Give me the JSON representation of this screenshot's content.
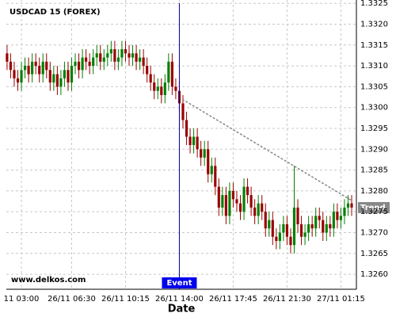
{
  "chart_data": {
    "type": "candlestick",
    "title": "USDCAD 15 (FOREX)",
    "watermark": "www.delkos.com",
    "x_label": "Date",
    "xlim": [
      1.95,
      26.33
    ],
    "ylim": [
      1.32564,
      1.33258
    ],
    "xticks": [
      {
        "value": 3,
        "label": "11 03:00"
      },
      {
        "value": 6.5,
        "label": "26/11 06:30"
      },
      {
        "value": 10.25,
        "label": "26/11 10:15"
      },
      {
        "value": 14,
        "label": "26/11 14:00"
      },
      {
        "value": 17.75,
        "label": "26/11 17:45"
      },
      {
        "value": 21.5,
        "label": "26/11 21:30"
      },
      {
        "value": 25.25,
        "label": "27/11 01:15"
      }
    ],
    "yticks": [
      {
        "value": 1.326,
        "label": "1.3260"
      },
      1.3265,
      {
        "value": 1.327,
        "label": "1.3270"
      },
      1.3275,
      {
        "value": 1.328,
        "label": "1.3280"
      },
      1.3285,
      {
        "value": 1.329,
        "label": "1.3290"
      },
      1.3295,
      {
        "value": 1.33,
        "label": "1.3300"
      },
      1.3305,
      {
        "value": 1.331,
        "label": "1.3310"
      },
      1.3315,
      {
        "value": 1.332,
        "label": "1.3320"
      },
      1.3325
    ],
    "grid": true,
    "up_color": "#008000",
    "down_color": "#990000",
    "x": [
      2,
      2.25,
      2.5,
      2.75,
      3,
      3.25,
      3.5,
      3.75,
      4,
      4.25,
      4.5,
      4.75,
      5,
      5.25,
      5.5,
      5.75,
      6,
      6.25,
      6.5,
      6.75,
      7,
      7.25,
      7.5,
      7.75,
      8,
      8.25,
      8.5,
      8.75,
      9,
      9.25,
      9.5,
      9.75,
      10,
      10.25,
      10.5,
      10.75,
      11,
      11.25,
      11.5,
      11.75,
      12,
      12.25,
      12.5,
      12.75,
      13,
      13.25,
      13.5,
      13.75,
      14,
      14.25,
      14.5,
      14.75,
      15,
      15.25,
      15.5,
      15.75,
      16,
      16.25,
      16.5,
      16.75,
      17,
      17.25,
      17.5,
      17.75,
      18,
      18.25,
      18.5,
      18.75,
      19,
      19.25,
      19.5,
      19.75,
      20,
      20.25,
      20.5,
      20.75,
      21,
      21.25,
      21.5,
      21.75,
      22,
      22.25,
      22.5,
      22.75,
      23,
      23.25,
      23.5,
      23.75,
      24,
      24.25,
      24.5,
      24.75,
      25,
      25.25,
      25.5,
      25.75,
      26
    ],
    "open": [
      1.3313,
      1.3311,
      1.3309,
      1.3307,
      1.3306,
      1.3309,
      1.331,
      1.3308,
      1.3311,
      1.331,
      1.3308,
      1.3311,
      1.3309,
      1.3306,
      1.3308,
      1.3305,
      1.3307,
      1.3309,
      1.3306,
      1.331,
      1.3311,
      1.3309,
      1.3312,
      1.3311,
      1.331,
      1.3312,
      1.3313,
      1.3311,
      1.3312,
      1.3313,
      1.3314,
      1.3311,
      1.3312,
      1.3314,
      1.3313,
      1.3312,
      1.3313,
      1.3311,
      1.3312,
      1.331,
      1.3308,
      1.3306,
      1.3304,
      1.3305,
      1.3303,
      1.3306,
      1.3311,
      1.3305,
      1.3304,
      1.3301,
      1.3297,
      1.3293,
      1.3291,
      1.3293,
      1.329,
      1.3288,
      1.329,
      1.3284,
      1.3286,
      1.3281,
      1.3276,
      1.3279,
      1.3274,
      1.328,
      1.3278,
      1.3277,
      1.3275,
      1.3281,
      1.3279,
      1.3276,
      1.3274,
      1.3277,
      1.3275,
      1.3271,
      1.3273,
      1.3269,
      1.3268,
      1.327,
      1.3272,
      1.3269,
      1.3267,
      1.3276,
      1.3272,
      1.3269,
      1.327,
      1.3272,
      1.3271,
      1.3274,
      1.3273,
      1.327,
      1.3272,
      1.3271,
      1.3275,
      1.3273,
      1.3274,
      1.3276,
      1.3277
    ],
    "high": [
      1.3315,
      1.3313,
      1.3311,
      1.3309,
      1.3311,
      1.3312,
      1.3312,
      1.3313,
      1.3313,
      1.3312,
      1.3313,
      1.3313,
      1.3311,
      1.331,
      1.331,
      1.3309,
      1.3311,
      1.3311,
      1.3312,
      1.3313,
      1.3313,
      1.3314,
      1.3314,
      1.3313,
      1.3314,
      1.3315,
      1.3315,
      1.3314,
      1.3315,
      1.3316,
      1.3316,
      1.3314,
      1.3316,
      1.3316,
      1.3315,
      1.3315,
      1.3315,
      1.3314,
      1.3314,
      1.3312,
      1.331,
      1.3308,
      1.3307,
      1.3307,
      1.3308,
      1.3313,
      1.3313,
      1.3307,
      1.3306,
      1.3303,
      1.3299,
      1.3295,
      1.3295,
      1.3295,
      1.3292,
      1.3292,
      1.3292,
      1.3288,
      1.3288,
      1.3283,
      1.3281,
      1.3281,
      1.3282,
      1.3282,
      1.328,
      1.3279,
      1.3283,
      1.3283,
      1.3281,
      1.3278,
      1.3279,
      1.3279,
      1.3277,
      1.3275,
      1.3275,
      1.3271,
      1.3272,
      1.3274,
      1.3274,
      1.3271,
      1.3286,
      1.3278,
      1.3274,
      1.3272,
      1.3274,
      1.3274,
      1.3276,
      1.3276,
      1.3275,
      1.3274,
      1.3274,
      1.3277,
      1.3277,
      1.3276,
      1.3278,
      1.3279,
      1.3279
    ],
    "low": [
      1.3309,
      1.3307,
      1.3305,
      1.3304,
      1.3304,
      1.3307,
      1.3306,
      1.3306,
      1.3308,
      1.3306,
      1.3306,
      1.3307,
      1.3304,
      1.3304,
      1.3303,
      1.3303,
      1.3305,
      1.3304,
      1.3304,
      1.3308,
      1.3307,
      1.3307,
      1.3309,
      1.3308,
      1.3308,
      1.331,
      1.3309,
      1.3309,
      1.331,
      1.3311,
      1.3309,
      1.3309,
      1.331,
      1.3311,
      1.331,
      1.331,
      1.3309,
      1.3309,
      1.3308,
      1.3306,
      1.3304,
      1.3302,
      1.3302,
      1.3301,
      1.3301,
      1.3304,
      1.3303,
      1.3302,
      1.3299,
      1.3295,
      1.3291,
      1.3289,
      1.3289,
      1.3288,
      1.3286,
      1.3286,
      1.3282,
      1.3282,
      1.3279,
      1.3274,
      1.3274,
      1.3272,
      1.3272,
      1.3276,
      1.3275,
      1.3273,
      1.3273,
      1.3277,
      1.3274,
      1.3272,
      1.3272,
      1.3273,
      1.3269,
      1.3269,
      1.3267,
      1.3266,
      1.3266,
      1.3268,
      1.3267,
      1.3265,
      1.3265,
      1.327,
      1.3267,
      1.3267,
      1.3268,
      1.3269,
      1.3269,
      1.3271,
      1.3268,
      1.3268,
      1.3269,
      1.3269,
      1.3271,
      1.3271,
      1.3272,
      1.3274,
      1.3274
    ],
    "close": [
      1.3311,
      1.3309,
      1.3307,
      1.3306,
      1.3309,
      1.331,
      1.3308,
      1.3311,
      1.331,
      1.3308,
      1.3311,
      1.3309,
      1.3306,
      1.3308,
      1.3305,
      1.3307,
      1.3309,
      1.3306,
      1.331,
      1.3311,
      1.3309,
      1.3312,
      1.3311,
      1.331,
      1.3312,
      1.3313,
      1.3311,
      1.3312,
      1.3313,
      1.3314,
      1.3311,
      1.3312,
      1.3314,
      1.3313,
      1.3312,
      1.3313,
      1.3311,
      1.3312,
      1.331,
      1.3308,
      1.3306,
      1.3304,
      1.3305,
      1.3303,
      1.3306,
      1.3311,
      1.3305,
      1.3304,
      1.3301,
      1.3297,
      1.3293,
      1.3291,
      1.3293,
      1.329,
      1.3288,
      1.329,
      1.3284,
      1.3286,
      1.3281,
      1.3276,
      1.3279,
      1.3274,
      1.328,
      1.3278,
      1.3277,
      1.3275,
      1.3281,
      1.3279,
      1.3276,
      1.3274,
      1.3277,
      1.3275,
      1.3271,
      1.3273,
      1.3269,
      1.3268,
      1.327,
      1.3272,
      1.3269,
      1.3267,
      1.3276,
      1.3272,
      1.3269,
      1.327,
      1.3272,
      1.3271,
      1.3274,
      1.3273,
      1.327,
      1.3272,
      1.3271,
      1.3275,
      1.3273,
      1.3274,
      1.3276,
      1.3277,
      1.3276
    ],
    "event": {
      "label": "Event",
      "x": 14,
      "color": "#000099"
    },
    "trend": {
      "label": "Trend",
      "x": [
        14.2,
        26
      ],
      "y": [
        1.3302,
        1.32777
      ],
      "color": "#888888"
    }
  }
}
